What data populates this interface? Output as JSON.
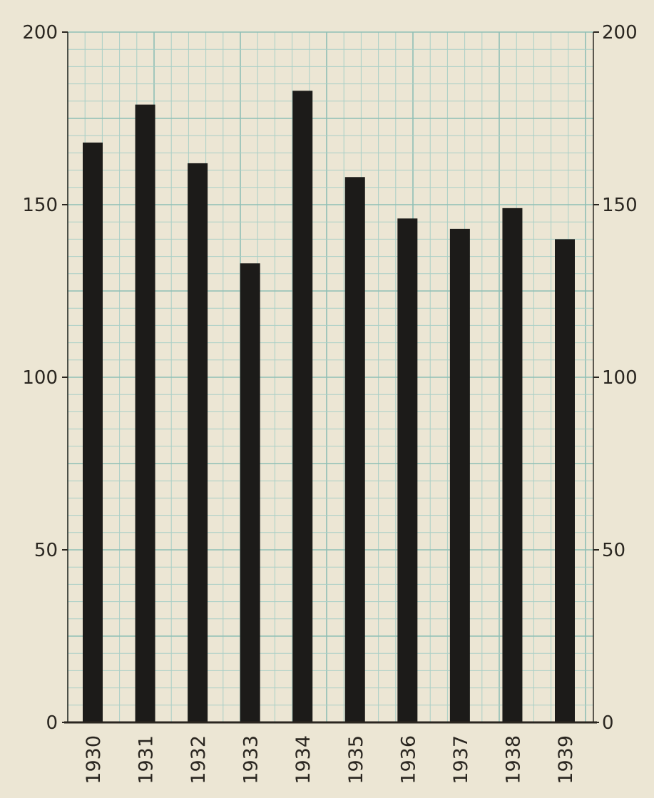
{
  "chart_data": {
    "type": "bar",
    "categories": [
      "1930",
      "1931",
      "1932",
      "1933",
      "1934",
      "1935",
      "1936",
      "1937",
      "1938",
      "1939"
    ],
    "values": [
      168,
      179,
      162,
      133,
      183,
      158,
      146,
      143,
      149,
      140
    ],
    "ylim": [
      0,
      200
    ],
    "yticks": [
      0,
      50,
      100,
      150,
      200
    ],
    "ytick_labels": [
      "0",
      "50",
      "100",
      "150",
      "200"
    ],
    "y_axis_both_sides": true,
    "grid": true,
    "legend": "none"
  },
  "colors": {
    "paper": "#ece6d4",
    "grid": "#a9cfc6",
    "grid_major": "#8fbfb5",
    "bar": "#1c1b19",
    "axis": "#2a2620"
  }
}
